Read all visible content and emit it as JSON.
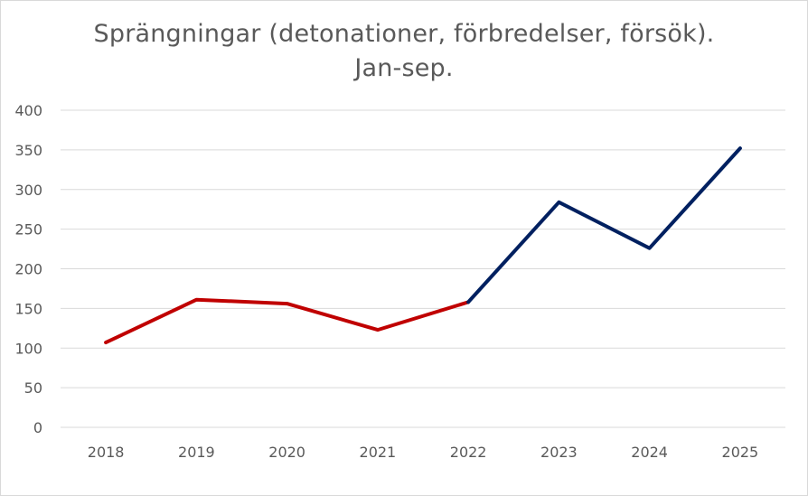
{
  "chart_data": {
    "type": "line",
    "title_line1": "Sprängningar (detonationer, förbredelser, försök).",
    "title_line2": "Jan-sep.",
    "categories": [
      "2018",
      "2019",
      "2020",
      "2021",
      "2022",
      "2023",
      "2024",
      "2025"
    ],
    "values": [
      107,
      161,
      156,
      123,
      158,
      284,
      226,
      352
    ],
    "y_ticks": [
      "0",
      "50",
      "100",
      "150",
      "200",
      "250",
      "300",
      "350",
      "400"
    ],
    "ylim": [
      0,
      400
    ],
    "xlabel": "",
    "ylabel": "",
    "grid": true,
    "series_segments": [
      {
        "name": "2018-2022",
        "from_index": 0,
        "to_index": 4,
        "color": "#c00000"
      },
      {
        "name": "2022-2025",
        "from_index": 4,
        "to_index": 7,
        "color": "#002060"
      }
    ],
    "gridline_color": "#d9d9d9",
    "text_color": "#595959"
  }
}
